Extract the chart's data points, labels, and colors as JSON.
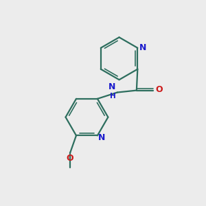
{
  "background_color": "#ececec",
  "bond_color": "#2d6e5e",
  "N_color": "#1a1acc",
  "O_color": "#cc1a1a",
  "figsize": [
    3.0,
    3.0
  ],
  "dpi": 100,
  "xlim": [
    0,
    10
  ],
  "ylim": [
    0,
    10
  ]
}
